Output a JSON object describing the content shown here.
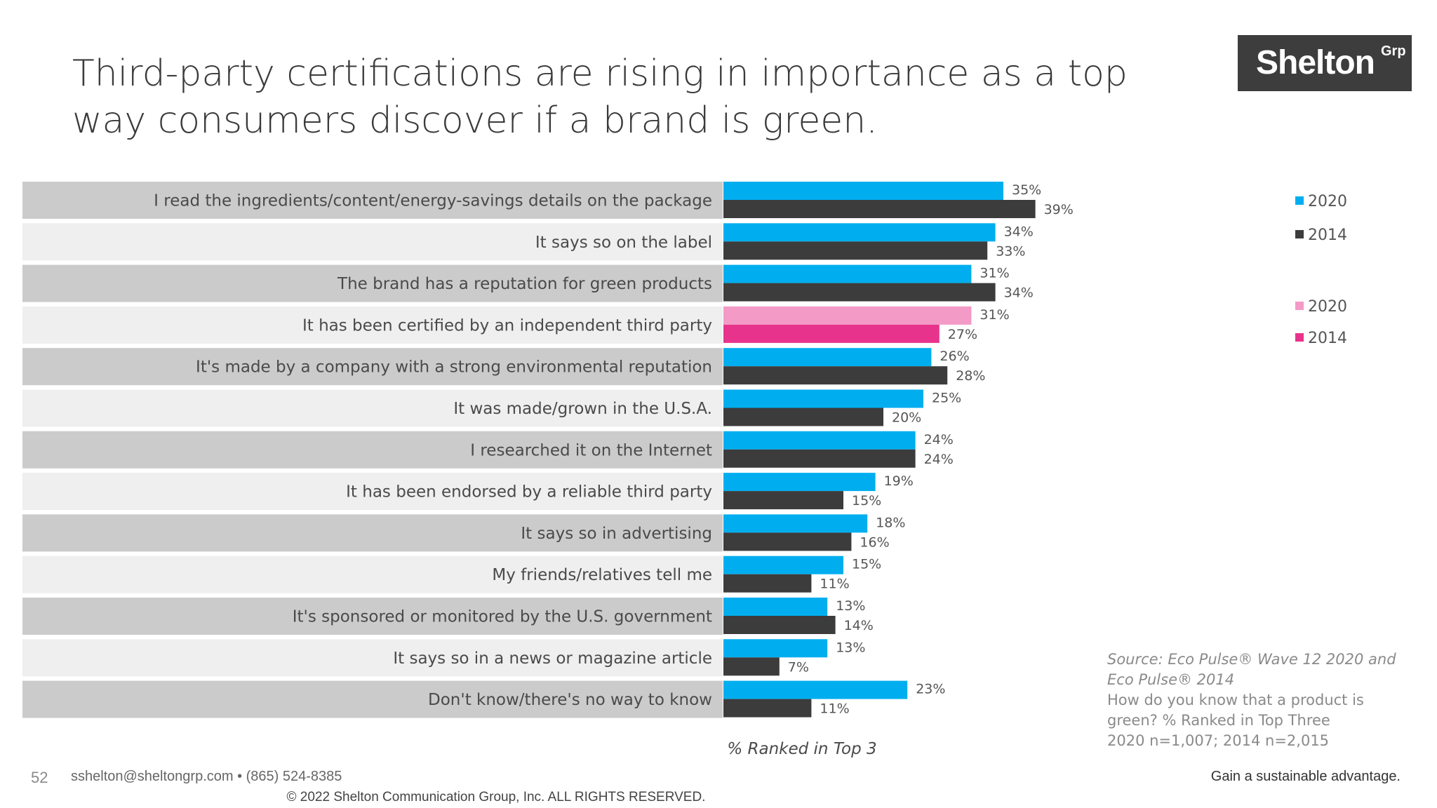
{
  "slide": {
    "title": "Third-party certifications are rising in importance as a top way consumers discover if a brand is green.",
    "logo": {
      "name": "Shelton",
      "sup": "Grp"
    },
    "page_number": "52",
    "contact": "sshelton@sheltongrp.com • (865) 524-8385",
    "tagline": "Gain a sustainable advantage.",
    "copyright": "© 2022 Shelton Communication Group, Inc.  ALL RIGHTS RESERVED.",
    "source_lines": [
      "Source: Eco Pulse® Wave 12 2020 and",
      "Eco Pulse® 2014"
    ],
    "question_lines": [
      "How do you know that a product is",
      "green? % Ranked in Top Three",
      "2020 n=1,007; 2014 n=2,015"
    ]
  },
  "colors": {
    "blue_2020": "#00aeef",
    "dark_2014": "#3c3c3c",
    "pink_2020": "#f39ac7",
    "magenta_2014": "#e8338c",
    "label_band_dark": "#cbcbcb",
    "label_band_light": "#efefef"
  },
  "chart_data": {
    "type": "bar",
    "orientation": "horizontal",
    "categories": [
      "I read the ingredients/content/energy-savings details on the package",
      "It says so on the label",
      "The brand has a reputation for green products",
      "It has been certified by an independent third party",
      "It's made by a company with a strong environmental reputation",
      "It was made/grown in the U.S.A.",
      "I researched it on the Internet",
      "It has been endorsed by a reliable third party",
      "It says so in advertising",
      "My friends/relatives tell me",
      "It's sponsored or monitored by the U.S. government",
      "It says so in a news or magazine article",
      "Don't know/there's no way to know"
    ],
    "series": [
      {
        "name": "2020",
        "values": [
          35,
          34,
          31,
          31,
          26,
          25,
          24,
          19,
          18,
          15,
          13,
          13,
          23
        ]
      },
      {
        "name": "2014",
        "values": [
          39,
          33,
          34,
          27,
          28,
          20,
          24,
          15,
          16,
          11,
          14,
          7,
          11
        ]
      }
    ],
    "value_labels": {
      "2020": [
        "35%",
        "34%",
        "31%",
        "31%",
        "26%",
        "25%",
        "24%",
        "19%",
        "18%",
        "15%",
        "13%",
        "13%",
        "23%"
      ],
      "2014": [
        "39%",
        "33%",
        "34%",
        "27%",
        "28%",
        "20%",
        "24%",
        "15%",
        "16%",
        "11%",
        "14%",
        "7%",
        "11%"
      ]
    },
    "highlight_index": 3,
    "xlabel": "% Ranked in Top 3",
    "xlim": [
      0,
      100
    ],
    "legend": [
      {
        "label": "2020",
        "color_key": "blue_2020"
      },
      {
        "label": "2014",
        "color_key": "dark_2014"
      },
      {
        "label": "2020",
        "color_key": "pink_2020"
      },
      {
        "label": "2014",
        "color_key": "magenta_2014"
      }
    ],
    "legend_position": "right",
    "grid": false
  }
}
